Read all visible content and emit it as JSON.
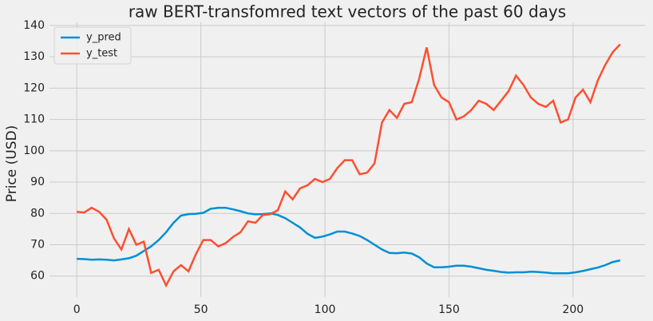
{
  "chart_data": {
    "type": "line",
    "title": "raw BERT-transfomred text vectors of the past 60 days",
    "y_label": "Price (USD)",
    "x": [
      0,
      3,
      6,
      9,
      12,
      15,
      18,
      21,
      24,
      27,
      30,
      33,
      36,
      39,
      42,
      45,
      48,
      51,
      54,
      57,
      60,
      63,
      66,
      69,
      72,
      75,
      78,
      81,
      84,
      87,
      90,
      93,
      96,
      99,
      102,
      105,
      108,
      111,
      114,
      117,
      120,
      123,
      126,
      129,
      132,
      135,
      138,
      141,
      144,
      147,
      150,
      153,
      156,
      159,
      162,
      165,
      168,
      171,
      174,
      177,
      180,
      183,
      186,
      189,
      192,
      195,
      198,
      201,
      204,
      207,
      210,
      213,
      216,
      219
    ],
    "series": [
      {
        "name": "y_pred",
        "color": "#008fd5",
        "values": [
          65.5,
          65.4,
          65.2,
          65.3,
          65.2,
          65.0,
          65.3,
          65.7,
          66.5,
          68,
          69.5,
          71.5,
          74,
          77,
          79.3,
          79.8,
          79.9,
          80.2,
          81.5,
          81.8,
          81.8,
          81.3,
          80.7,
          80,
          79.7,
          79.8,
          80,
          79.5,
          78.5,
          77,
          75.5,
          73.5,
          72.2,
          72.6,
          73.3,
          74.2,
          74.2,
          73.6,
          72.8,
          71.5,
          70,
          68.5,
          67.4,
          67.3,
          67.5,
          67.2,
          66,
          64,
          62.8,
          62.8,
          63,
          63.3,
          63.3,
          63,
          62.5,
          62,
          61.7,
          61.3,
          61.1,
          61.2,
          61.2,
          61.4,
          61.3,
          61.1,
          60.9,
          60.9,
          60.9,
          61.2,
          61.6,
          62.2,
          62.7,
          63.5,
          64.5,
          65
        ]
      },
      {
        "name": "y_test",
        "color": "#fc4f30",
        "values": [
          80.5,
          80.3,
          81.8,
          80.5,
          78,
          72,
          68.5,
          75,
          70,
          71,
          61,
          62,
          57,
          61.5,
          63.5,
          61.5,
          67,
          71.5,
          71.5,
          69.5,
          70.5,
          72.5,
          74,
          77.5,
          77,
          79.5,
          79.8,
          81,
          87,
          84.5,
          88,
          89,
          91,
          90,
          91,
          94.5,
          97,
          97,
          92.5,
          93,
          96,
          109,
          113,
          110.5,
          115,
          115.5,
          123,
          133,
          121,
          117,
          115.5,
          110,
          111,
          113,
          116,
          115,
          113,
          116,
          119,
          124,
          121,
          117,
          115,
          114,
          116,
          109,
          110,
          117,
          119.5,
          115.5,
          122.5,
          127.5,
          131.5,
          134
        ]
      }
    ],
    "xlim": [
      -11,
      229
    ],
    "ylim": [
      53.3,
      141
    ],
    "xticks": [
      0,
      50,
      100,
      150,
      200
    ],
    "yticks": [
      60,
      70,
      80,
      90,
      100,
      110,
      120,
      130,
      140
    ],
    "grid": true,
    "legend": "upper left"
  }
}
